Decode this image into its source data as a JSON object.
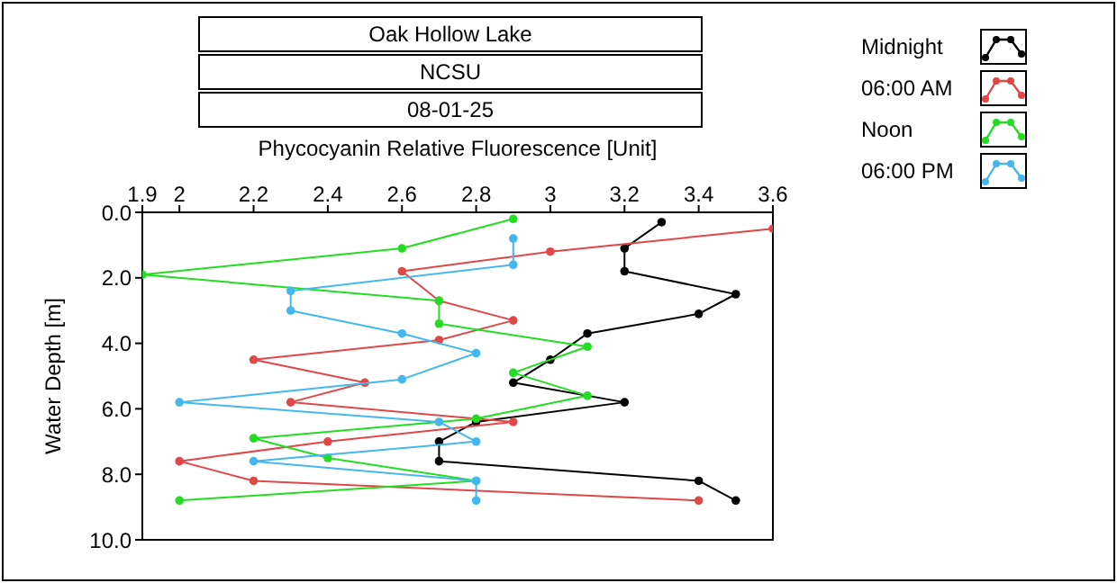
{
  "chart_data": {
    "type": "line",
    "title": "Oak Hollow Lake",
    "subtitle": "NCSU",
    "annotations": [
      "08-01-25"
    ],
    "xlabel": "Phycocyanin Relative Fluorescence [Unit]",
    "ylabel": "Water Depth [m]",
    "xlim": [
      1.9,
      3.6
    ],
    "xticks": [
      1.9,
      2,
      2.2,
      2.4,
      2.6,
      2.8,
      3,
      3.2,
      3.4,
      3.6
    ],
    "ylim": [
      10,
      0
    ],
    "yticks": [
      {
        "value": 0,
        "label": "0.0"
      },
      {
        "value": 2,
        "label": "2.0"
      },
      {
        "value": 4,
        "label": "4.0"
      },
      {
        "value": 6,
        "label": "6.0"
      },
      {
        "value": 8,
        "label": "8.0"
      },
      {
        "value": 10,
        "label": "10.0"
      }
    ],
    "grid": false,
    "legend": "top right",
    "marker": "circle",
    "line_style": "solid",
    "series": [
      {
        "name": "Midnight",
        "color": "#000000",
        "x": [
          3.3,
          3.2,
          3.2,
          3.5,
          3.4,
          3.1,
          3.0,
          2.9,
          3.2,
          2.8,
          2.7,
          2.7,
          3.4,
          3.5
        ],
        "values": [
          0.3,
          1.1,
          1.8,
          2.5,
          3.1,
          3.7,
          4.5,
          5.2,
          5.8,
          6.4,
          7.0,
          7.6,
          8.2,
          8.8
        ]
      },
      {
        "name": "06:00 AM",
        "color": "#e04848",
        "x": [
          3.6,
          3.0,
          2.6,
          2.7,
          2.9,
          2.7,
          2.2,
          2.5,
          2.3,
          2.9,
          2.4,
          2.0,
          2.2,
          3.4
        ],
        "values": [
          0.5,
          1.2,
          1.8,
          2.7,
          3.3,
          3.9,
          4.5,
          5.2,
          5.8,
          6.4,
          7.0,
          7.6,
          8.2,
          8.8
        ]
      },
      {
        "name": "Noon",
        "color": "#22dd22",
        "x": [
          2.9,
          2.6,
          1.9,
          2.7,
          2.7,
          3.1,
          2.9,
          3.1,
          2.8,
          2.2,
          2.4,
          2.8,
          2.0
        ],
        "values": [
          0.2,
          1.1,
          1.9,
          2.7,
          3.4,
          4.1,
          4.9,
          5.6,
          6.3,
          6.9,
          7.5,
          8.2,
          8.8
        ]
      },
      {
        "name": "06:00 PM",
        "color": "#44b8ee",
        "x": [
          2.9,
          2.9,
          2.3,
          2.3,
          2.6,
          2.8,
          2.6,
          2.0,
          2.7,
          2.8,
          2.2,
          2.8,
          2.8
        ],
        "values": [
          0.8,
          1.6,
          2.4,
          3.0,
          3.7,
          4.3,
          5.1,
          5.8,
          6.4,
          7.0,
          7.6,
          8.2,
          8.8
        ]
      }
    ]
  }
}
